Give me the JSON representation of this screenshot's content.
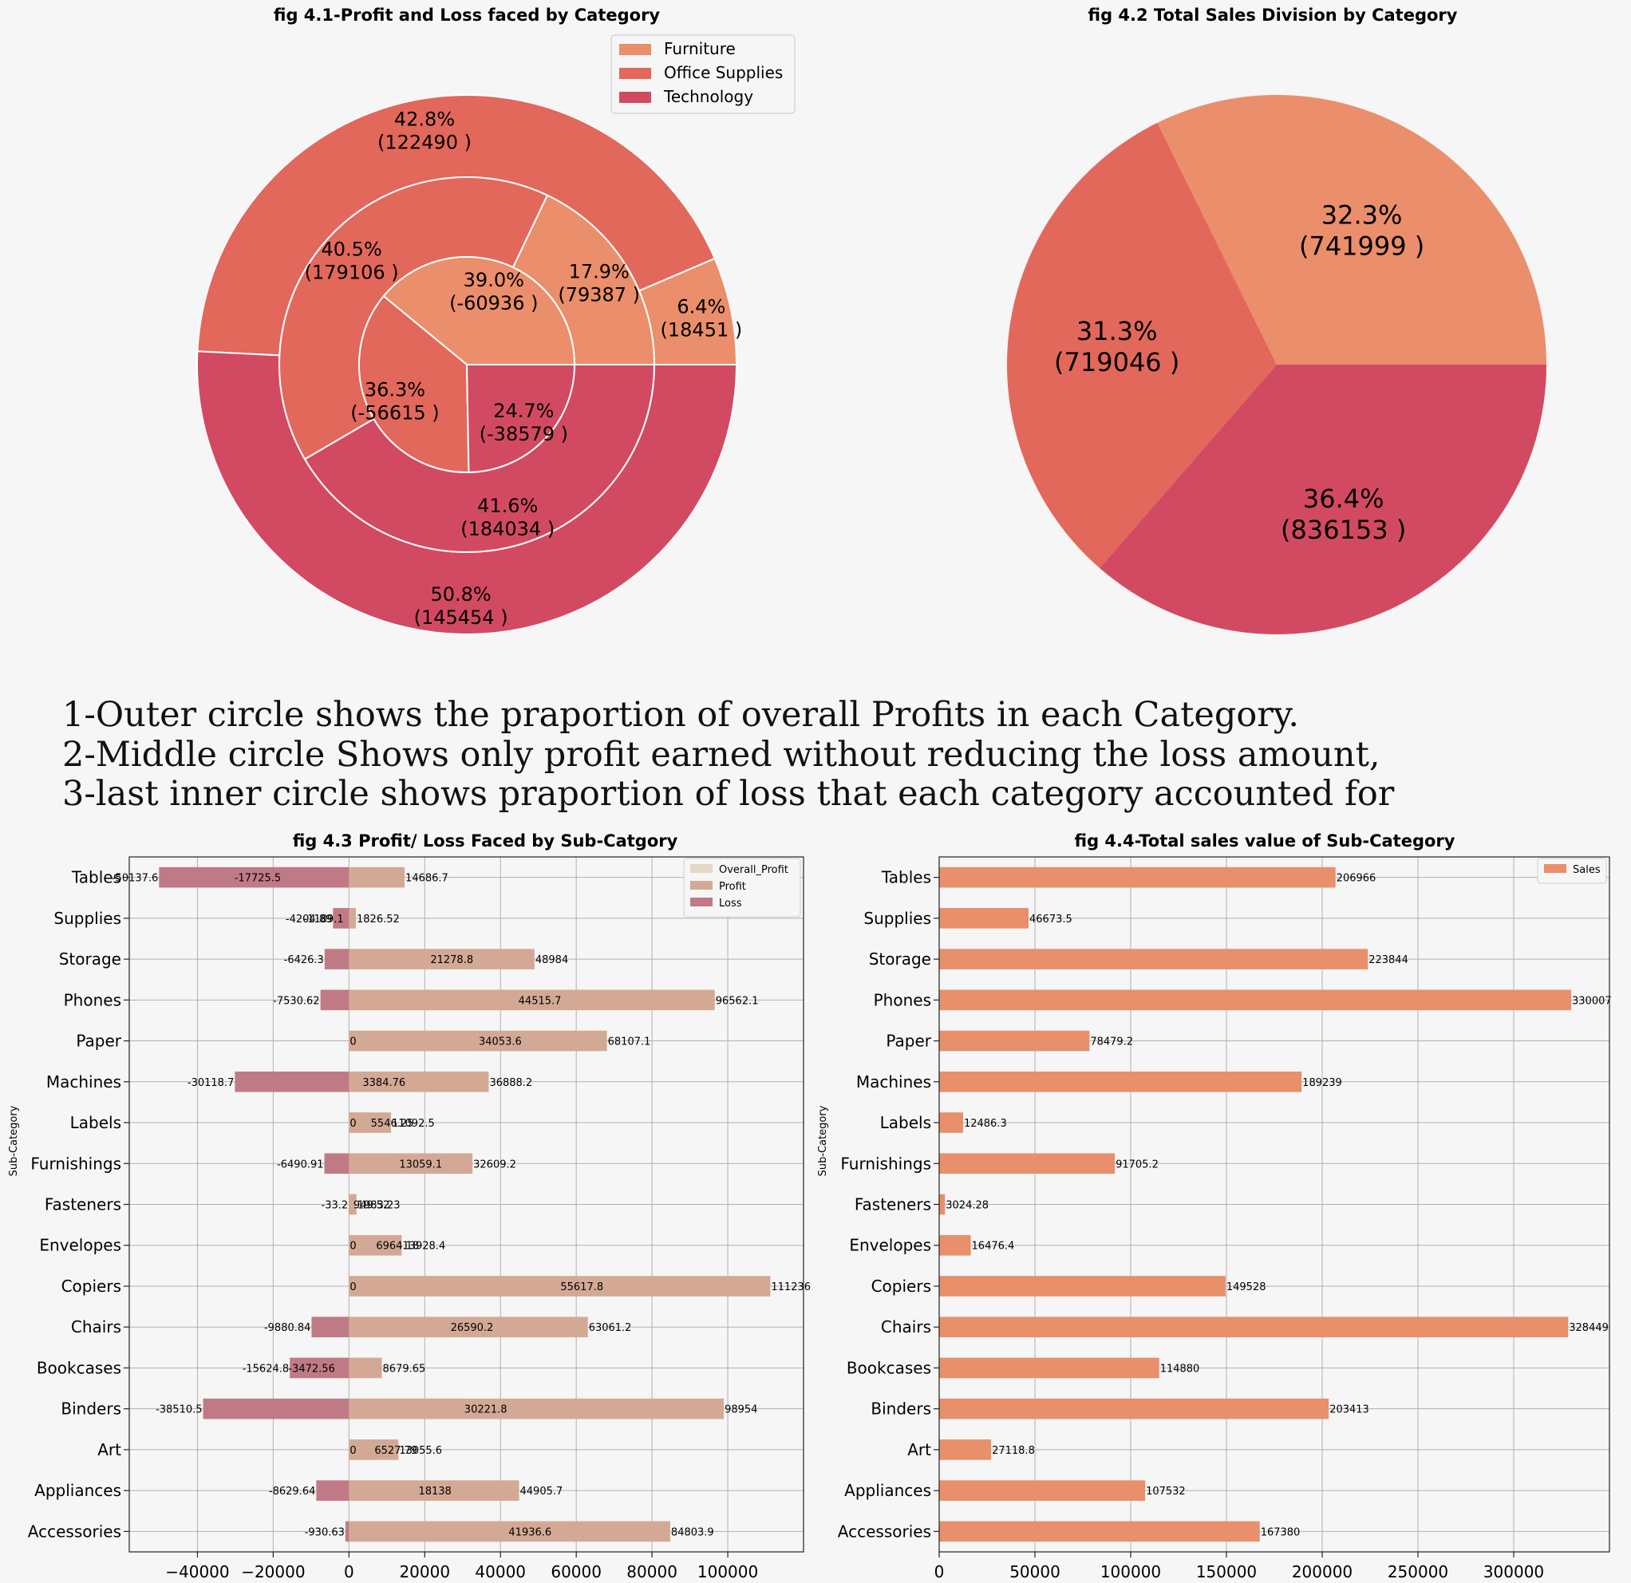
{
  "note": {
    "line1": "1-Outer circle shows the praportion of overall Profits in each Category.",
    "line2": "2-Middle circle Shows only profit earned without reducing the loss amount,",
    "line3": "3-last inner circle shows praportion of loss that each category accounted for"
  },
  "colors": {
    "furniture": "#ea8e6b",
    "office_supplies": "#e2685b",
    "technology": "#d24a61",
    "overall_profit": "#e3d8c3",
    "profit": "#d3a995",
    "loss": "#c07a86",
    "sales": "#e88f6b",
    "grid": "#b0b0b0"
  },
  "chart_data": [
    {
      "id": "fig41",
      "type": "pie",
      "title": "fig 4.1-Profit and Loss faced by Category",
      "legend": [
        "Furniture",
        "Office Supplies",
        "Technology"
      ],
      "legend_position": "top-right",
      "rings": [
        {
          "name": "outer",
          "slices": [
            {
              "category": "Furniture",
              "pct": "6.4%",
              "value": "(18451 )",
              "v": 18451
            },
            {
              "category": "Office Supplies",
              "pct": "42.8%",
              "value": "(122490 )",
              "v": 122490
            },
            {
              "category": "Technology",
              "pct": "50.8%",
              "value": "(145454 )",
              "v": 145454
            }
          ]
        },
        {
          "name": "middle",
          "slices": [
            {
              "category": "Furniture",
              "pct": "17.9%",
              "value": "(79387 )",
              "v": 79387
            },
            {
              "category": "Office Supplies",
              "pct": "40.5%",
              "value": "(179106 )",
              "v": 179106
            },
            {
              "category": "Technology",
              "pct": "41.6%",
              "value": "(184034 )",
              "v": 184034
            }
          ]
        },
        {
          "name": "inner",
          "slices": [
            {
              "category": "Furniture",
              "pct": "39.0%",
              "value": "(-60936 )",
              "v": 60936
            },
            {
              "category": "Office Supplies",
              "pct": "36.3%",
              "value": "(-56615 )",
              "v": 56615
            },
            {
              "category": "Technology",
              "pct": "24.7%",
              "value": "(-38579 )",
              "v": 38579
            }
          ]
        }
      ]
    },
    {
      "id": "fig42",
      "type": "pie",
      "title": "fig 4.2 Total Sales Division by Category",
      "slices": [
        {
          "category": "Furniture",
          "pct": "32.3%",
          "value": "(741999 )",
          "v": 741999
        },
        {
          "category": "Office Supplies",
          "pct": "31.3%",
          "value": "(719046 )",
          "v": 719046
        },
        {
          "category": "Technology",
          "pct": "36.4%",
          "value": "(836153 )",
          "v": 836153
        }
      ]
    },
    {
      "id": "fig43",
      "type": "bar",
      "orientation": "horizontal",
      "title": "fig 4.3 Profit/ Loss Faced by Sub-Catgory",
      "ylabel": "Sub-Category",
      "xlim": [
        -58000,
        120000
      ],
      "xticks": [
        -40000,
        -20000,
        0,
        20000,
        40000,
        60000,
        80000,
        100000
      ],
      "xtick_labels": [
        "−40000",
        "−20000",
        "0",
        "20000",
        "40000",
        "60000",
        "80000",
        "100000"
      ],
      "grid": true,
      "legend_position": "top-right",
      "categories": [
        "Tables",
        "Supplies",
        "Storage",
        "Phones",
        "Paper",
        "Machines",
        "Labels",
        "Furnishings",
        "Fasteners",
        "Envelopes",
        "Copiers",
        "Chairs",
        "Bookcases",
        "Binders",
        "Art",
        "Appliances",
        "Accessories"
      ],
      "series": [
        {
          "name": "Overall_Profit",
          "color_key": "overall_profit",
          "values": [
            -17725.5,
            -1189.1,
            21278.8,
            44515.7,
            34053.6,
            3384.76,
            5546.25,
            13059.1,
            949.52,
            6964.18,
            55617.8,
            26590.2,
            -3472.56,
            30221.8,
            6527.79,
            18138,
            41936.6
          ],
          "labels": [
            "-17725.5",
            "-1189.1",
            "21278.8",
            "44515.7",
            "34053.6",
            "3384.76",
            "5546.25",
            "13059.1",
            "949.52",
            "6964.18",
            "55617.8",
            "26590.2",
            "-3472.56",
            "30221.8",
            "6527.79",
            "18138",
            "41936.6"
          ]
        },
        {
          "name": "Profit",
          "color_key": "profit",
          "values": [
            14686.7,
            1826.52,
            48984,
            96562.1,
            68107.1,
            36888.2,
            11092.5,
            32609.2,
            1983.23,
            13928.4,
            111236,
            63061.2,
            8679.65,
            98954,
            13055.6,
            44905.7,
            84803.9
          ],
          "labels": [
            "14686.7",
            "1826.52",
            "48984",
            "96562.1",
            "68107.1",
            "36888.2",
            "11092.5",
            "32609.2",
            "1983.23",
            "13928.4",
            "111236",
            "63061.2",
            "8679.65",
            "98954",
            "13055.6",
            "44905.7",
            "84803.9"
          ]
        },
        {
          "name": "Loss",
          "color_key": "loss",
          "values": [
            -50137.6,
            -4204.89,
            -6426.3,
            -7530.62,
            0,
            -30118.7,
            0,
            -6490.91,
            -33.2,
            0,
            0,
            -9880.84,
            -15624.8,
            -38510.5,
            0,
            -8629.64,
            -930.63
          ],
          "labels": [
            "-50137.6",
            "-4204.89",
            "-6426.3",
            "-7530.62",
            "0",
            "-30118.7",
            "0",
            "-6490.91",
            "-33.2",
            "0",
            "0",
            "-9880.84",
            "-15624.8",
            "-38510.5",
            "0",
            "-8629.64",
            "-930.63"
          ]
        }
      ]
    },
    {
      "id": "fig44",
      "type": "bar",
      "orientation": "horizontal",
      "title": "fig 4.4-Total sales value of Sub-Category",
      "ylabel": "Sub-Category",
      "xlim": [
        0,
        350000
      ],
      "xticks": [
        0,
        50000,
        100000,
        150000,
        200000,
        250000,
        300000
      ],
      "xtick_labels": [
        "0",
        "50000",
        "100000",
        "150000",
        "200000",
        "250000",
        "300000"
      ],
      "grid": true,
      "legend_position": "top-right",
      "categories": [
        "Tables",
        "Supplies",
        "Storage",
        "Phones",
        "Paper",
        "Machines",
        "Labels",
        "Furnishings",
        "Fasteners",
        "Envelopes",
        "Copiers",
        "Chairs",
        "Bookcases",
        "Binders",
        "Art",
        "Appliances",
        "Accessories"
      ],
      "series": [
        {
          "name": "Sales",
          "color_key": "sales",
          "values": [
            206966,
            46673.5,
            223844,
            330007,
            78479.2,
            189239,
            12486.3,
            91705.2,
            3024.28,
            16476.4,
            149528,
            328449,
            114880,
            203413,
            27118.8,
            107532,
            167380
          ],
          "labels": [
            "206966",
            "46673.5",
            "223844",
            "330007",
            "78479.2",
            "189239",
            "12486.3",
            "91705.2",
            "3024.28",
            "16476.4",
            "149528",
            "328449",
            "114880",
            "203413",
            "27118.8",
            "107532",
            "167380"
          ]
        }
      ]
    }
  ]
}
